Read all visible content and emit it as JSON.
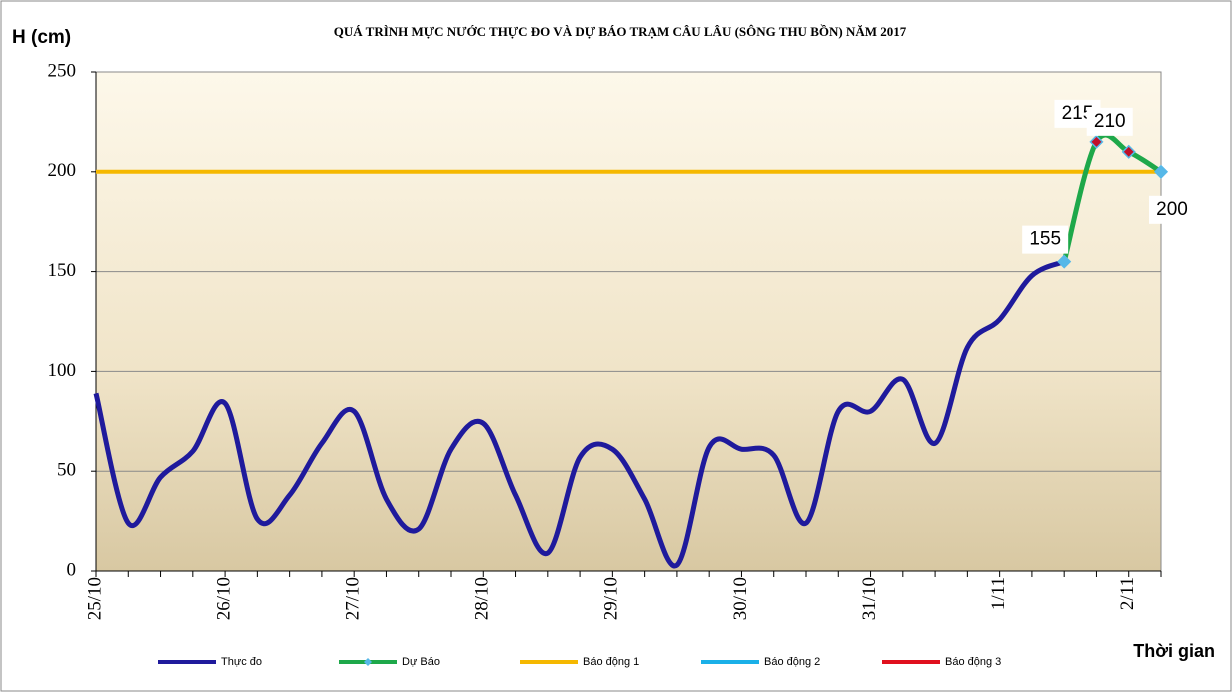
{
  "chart_data": {
    "type": "line",
    "title": "QUÁ TRÌNH MỰC NƯỚC THỰC ĐO VÀ DỰ BÁO TRẠM CÂU LÂU (SÔNG THU BỒN) NĂM  2017",
    "y_label": "H (cm)",
    "x_label": "Thời gian",
    "categories": [
      "25/10",
      null,
      null,
      null,
      "26/10",
      null,
      null,
      null,
      "27/10",
      null,
      null,
      null,
      "28/10",
      null,
      null,
      null,
      "29/10",
      null,
      null,
      null,
      "30/10",
      null,
      null,
      null,
      "31/10",
      null,
      null,
      null,
      "1/11",
      null,
      null,
      null,
      "2/11",
      null
    ],
    "series": [
      {
        "name": "Thực đo",
        "color": "#1f1a9c",
        "values": [
          89,
          24,
          47,
          60,
          84,
          26,
          38,
          64,
          80,
          36,
          21,
          61,
          74,
          38,
          9,
          57,
          61,
          36,
          3,
          62,
          61,
          58,
          24,
          80,
          80,
          96,
          64,
          112,
          126,
          148,
          155,
          null,
          null,
          null
        ]
      },
      {
        "name": "Dự Báo",
        "color": "#1ea84a",
        "marker_colors": [
          null,
          null,
          null,
          null,
          null,
          null,
          null,
          null,
          null,
          null,
          null,
          null,
          null,
          null,
          null,
          null,
          null,
          null,
          null,
          null,
          null,
          null,
          null,
          null,
          null,
          null,
          null,
          null,
          null,
          null,
          "#56b8e8",
          "#c0102a",
          "#c0102a",
          "#56b8e8"
        ],
        "values": [
          null,
          null,
          null,
          null,
          null,
          null,
          null,
          null,
          null,
          null,
          null,
          null,
          null,
          null,
          null,
          null,
          null,
          null,
          null,
          null,
          null,
          null,
          null,
          null,
          null,
          null,
          null,
          null,
          null,
          null,
          155,
          215,
          210,
          200
        ]
      }
    ],
    "alert_lines": [
      {
        "name": "Báo động 1",
        "color": "#f5b800",
        "value": 200
      },
      {
        "name": "Báo động 2",
        "color": "#1ab0e8"
      },
      {
        "name": "Báo động 3",
        "color": "#e0101e"
      }
    ],
    "ylim": [
      0,
      250
    ],
    "yticks": [
      0,
      50,
      100,
      150,
      200,
      250
    ],
    "grid": true
  }
}
